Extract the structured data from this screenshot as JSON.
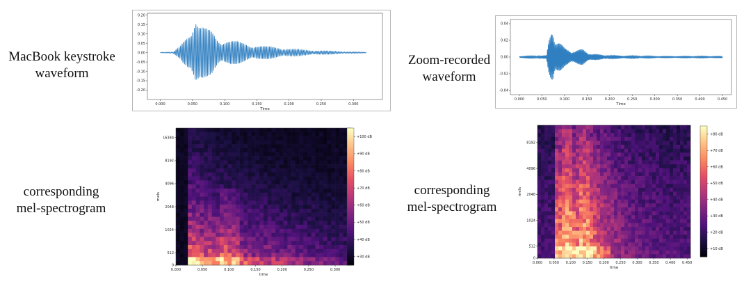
{
  "captions": {
    "left_waveform": [
      "MacBook keystroke",
      "waveform"
    ],
    "right_waveform": [
      "Zoom-recorded",
      "waveform"
    ],
    "left_spectrogram": [
      "corresponding",
      "mel-spectrogram"
    ],
    "right_spectrogram": [
      "corresponding",
      "mel-spectrogram"
    ]
  },
  "chart_data": [
    {
      "id": "macbook-waveform",
      "type": "line",
      "xlabel": "Time",
      "xlim": [
        -0.02,
        0.345
      ],
      "ylim": [
        -0.25,
        0.21
      ],
      "xticks": [
        "0.000",
        "0.050",
        "0.100",
        "0.150",
        "0.200",
        "0.250",
        "0.300"
      ],
      "xtick_values": [
        0,
        0.05,
        0.1,
        0.15,
        0.2,
        0.25,
        0.3
      ],
      "yticks": [
        "0.20",
        "0.15",
        "0.10",
        "0.05",
        "0.00",
        "-0.05",
        "-0.10",
        "-0.15",
        "-0.20"
      ],
      "ytick_values": [
        0.2,
        0.15,
        0.1,
        0.05,
        0,
        -0.05,
        -0.1,
        -0.15,
        -0.2
      ],
      "color": "#2f7fc1",
      "envelope": {
        "t": [
          0,
          0.02,
          0.03,
          0.04,
          0.05,
          0.055,
          0.06,
          0.07,
          0.08,
          0.09,
          0.1,
          0.12,
          0.14,
          0.16,
          0.18,
          0.2,
          0.22,
          0.25,
          0.28,
          0.3,
          0.32
        ],
        "amplitude": [
          0.002,
          0.003,
          0.03,
          0.09,
          0.17,
          0.2,
          0.15,
          0.13,
          0.12,
          0.08,
          0.07,
          0.06,
          0.045,
          0.035,
          0.03,
          0.02,
          0.015,
          0.01,
          0.006,
          0.004,
          0.002
        ]
      }
    },
    {
      "id": "zoom-waveform",
      "type": "line",
      "xlabel": "Time",
      "xlim": [
        -0.02,
        0.47
      ],
      "ylim": [
        -0.045,
        0.045
      ],
      "xticks": [
        "0.000",
        "0.050",
        "0.100",
        "0.150",
        "0.200",
        "0.250",
        "0.300",
        "0.350",
        "0.400",
        "0.450"
      ],
      "xtick_values": [
        0,
        0.05,
        0.1,
        0.15,
        0.2,
        0.25,
        0.3,
        0.35,
        0.4,
        0.45
      ],
      "yticks": [
        "0.04",
        "0.02",
        "0.00",
        "-0.02",
        "-0.04"
      ],
      "ytick_values": [
        0.04,
        0.02,
        0,
        -0.02,
        -0.04
      ],
      "color": "#2f7fc1",
      "envelope": {
        "t": [
          0,
          0.06,
          0.065,
          0.072,
          0.075,
          0.08,
          0.09,
          0.1,
          0.12,
          0.14,
          0.16,
          0.2,
          0.25,
          0.3,
          0.35,
          0.4,
          0.45
        ],
        "amplitude": [
          0.001,
          0.002,
          0.02,
          0.038,
          0.042,
          0.022,
          0.018,
          0.012,
          0.008,
          0.01,
          0.004,
          0.002,
          0.0015,
          0.001,
          0.001,
          0.001,
          0.001
        ]
      }
    },
    {
      "id": "macbook-mel-spectrogram",
      "type": "heatmap",
      "xlabel": "time",
      "ylabel": "mels",
      "xlim": [
        0,
        0.33
      ],
      "xticks": [
        "0.000",
        "0.050",
        "0.100",
        "0.150",
        "0.200",
        "0.250",
        "0.300"
      ],
      "xtick_values": [
        0,
        0.05,
        0.1,
        0.15,
        0.2,
        0.25,
        0.3
      ],
      "yticks": [
        "0",
        "512",
        "1024",
        "2048",
        "4096",
        "8192",
        "16384"
      ],
      "colorbar": {
        "min": 25,
        "max": 105,
        "ticks": [
          "+100 dB",
          "+90 dB",
          "+80 dB",
          "+70 dB",
          "+60 dB",
          "+50 dB",
          "+40 dB",
          "+30 dB"
        ],
        "tick_values": [
          100,
          90,
          80,
          70,
          60,
          50,
          40,
          30
        ]
      },
      "onset": 0.02,
      "peak_db": 90,
      "floor_db": 28
    },
    {
      "id": "zoom-mel-spectrogram",
      "type": "heatmap",
      "xlabel": "time",
      "ylabel": "mels",
      "xlim": [
        0,
        0.46
      ],
      "xticks": [
        "0.000",
        "0.050",
        "0.100",
        "0.150",
        "0.200",
        "0.250",
        "0.300",
        "0.350",
        "0.400",
        "0.450"
      ],
      "xtick_values": [
        0,
        0.05,
        0.1,
        0.15,
        0.2,
        0.25,
        0.3,
        0.35,
        0.4,
        0.45
      ],
      "yticks": [
        "0",
        "512",
        "1024",
        "2048",
        "4096",
        "8192"
      ],
      "colorbar": {
        "min": 5,
        "max": 85,
        "ticks": [
          "+80 dB",
          "+70 dB",
          "+60 dB",
          "+50 dB",
          "+40 dB",
          "+30 dB",
          "+20 dB",
          "+10 dB"
        ],
        "tick_values": [
          80,
          70,
          60,
          50,
          40,
          30,
          20,
          10
        ]
      },
      "onset": 0.05,
      "peak_db": 82,
      "floor_db": 12
    }
  ]
}
